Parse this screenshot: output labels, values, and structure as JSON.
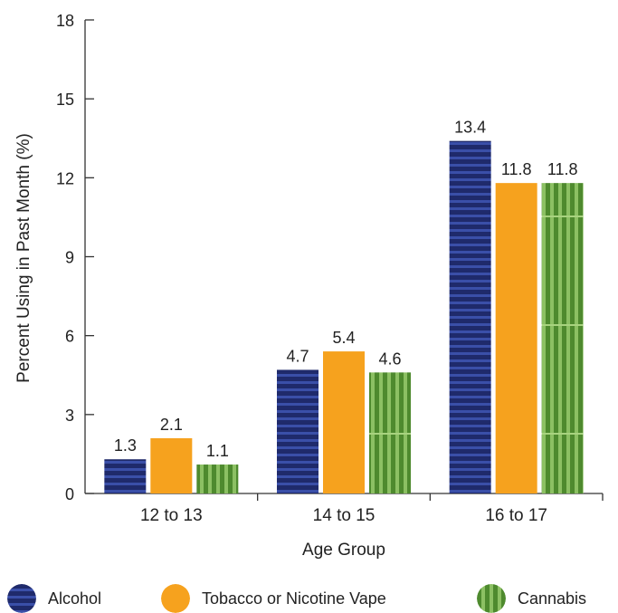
{
  "chart_data": {
    "type": "bar",
    "categories": [
      "12 to 13",
      "14 to 15",
      "16 to 17"
    ],
    "series": [
      {
        "name": "Alcohol",
        "values": [
          1.3,
          4.7,
          13.4
        ],
        "color": "#1f2a6b",
        "pattern": "horizontal-stripes"
      },
      {
        "name": "Tobacco or Nicotine Vape",
        "values": [
          2.1,
          5.4,
          11.8
        ],
        "color": "#f6a21e",
        "pattern": "solid"
      },
      {
        "name": "Cannabis",
        "values": [
          1.1,
          4.6,
          11.8
        ],
        "color": "#5d9a3a",
        "pattern": "vertical-stripes"
      }
    ],
    "value_labels": [
      [
        "1.3",
        "4.7",
        "13.4"
      ],
      [
        "2.1",
        "5.4",
        "11.8"
      ],
      [
        "1.1",
        "4.6",
        "11.8"
      ]
    ],
    "xlabel": "Age Group",
    "ylabel": "Percent Using in Past Month (%)",
    "ylim": [
      0,
      18
    ],
    "yticks": [
      "0",
      "3",
      "6",
      "9",
      "12",
      "15",
      "18"
    ],
    "grid": false,
    "legend_position": "bottom"
  },
  "legend": {
    "items": [
      {
        "label": "Alcohol",
        "icon": "alcohol-swatch-icon"
      },
      {
        "label": "Tobacco or Nicotine Vape",
        "icon": "tobacco-vape-swatch-icon"
      },
      {
        "label": "Cannabis",
        "icon": "cannabis-swatch-icon"
      }
    ]
  }
}
